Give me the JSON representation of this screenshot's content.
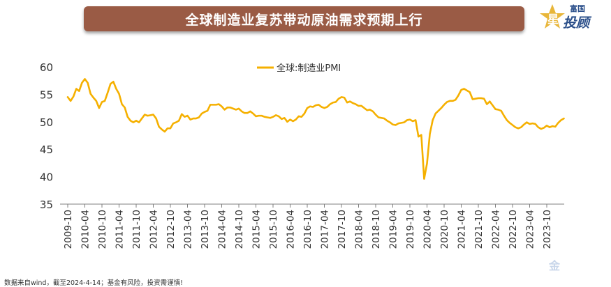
{
  "header": {
    "title": "全球制造业复苏带动原油需求预期上行"
  },
  "logo": {
    "line1": "富国",
    "line2": "投顾",
    "accent_char": "星"
  },
  "footer": {
    "note": "数据来自wind，截至2024-4-14；基金有风险，投资需谨慎!"
  },
  "watermark": {
    "text": "金"
  },
  "colors": {
    "line": "#f5b000",
    "title_bg": "#9a5b45",
    "axis_text": "#333333",
    "logo": "#2b4f8a"
  },
  "chart_data": {
    "type": "line",
    "title": "",
    "xlabel": "",
    "ylabel": "",
    "ylim": [
      35,
      60
    ],
    "yticks": [
      35,
      40,
      45,
      50,
      55,
      60
    ],
    "grid": false,
    "legend_position": "top-center",
    "x_tick_labels": [
      "2009-10",
      "2010-04",
      "2010-10",
      "2011-04",
      "2011-10",
      "2012-04",
      "2012-10",
      "2013-04",
      "2013-10",
      "2014-04",
      "2014-10",
      "2015-04",
      "2015-10",
      "2016-04",
      "2016-10",
      "2017-04",
      "2017-10",
      "2018-04",
      "2018-10",
      "2019-04",
      "2019-10",
      "2020-04",
      "2020-10",
      "2021-04",
      "2021-10",
      "2022-04",
      "2022-10",
      "2023-04",
      "2023-10"
    ],
    "series": [
      {
        "name": "全球:制造业PMI",
        "color": "#f5b000",
        "start": "2009-10",
        "frequency": "monthly",
        "values": [
          54.5,
          53.8,
          54.6,
          56.0,
          55.6,
          57.1,
          57.8,
          57.1,
          55.1,
          54.4,
          53.8,
          52.5,
          53.6,
          53.8,
          55.3,
          56.9,
          57.3,
          56.0,
          55.1,
          53.2,
          52.6,
          50.9,
          50.2,
          49.9,
          50.2,
          49.9,
          50.6,
          51.3,
          51.1,
          51.2,
          51.3,
          50.6,
          49.1,
          48.6,
          48.2,
          48.8,
          48.8,
          49.7,
          49.9,
          50.2,
          51.4,
          50.9,
          51.1,
          50.4,
          50.6,
          50.6,
          50.8,
          51.5,
          51.8,
          52.0,
          53.1,
          53.1,
          53.1,
          53.2,
          52.8,
          52.2,
          52.6,
          52.6,
          52.4,
          52.2,
          52.4,
          51.9,
          51.6,
          51.6,
          51.9,
          51.5,
          51.0,
          51.1,
          51.1,
          50.9,
          50.8,
          50.7,
          50.9,
          51.2,
          51.0,
          50.5,
          50.7,
          50.0,
          50.4,
          50.1,
          50.4,
          51.0,
          50.9,
          51.5,
          52.5,
          52.8,
          52.7,
          53.0,
          53.1,
          52.7,
          52.5,
          52.7,
          53.2,
          53.5,
          53.6,
          54.2,
          54.5,
          54.4,
          53.5,
          53.7,
          53.4,
          53.2,
          52.9,
          52.9,
          52.5,
          52.1,
          52.2,
          51.9,
          51.3,
          50.8,
          50.7,
          50.6,
          50.2,
          49.9,
          49.5,
          49.4,
          49.7,
          49.8,
          49.9,
          50.3,
          50.4,
          50.1,
          50.3,
          47.3,
          47.6,
          39.6,
          42.4,
          47.8,
          50.3,
          51.5,
          52.0,
          52.5,
          53.1,
          53.6,
          53.8,
          53.8,
          54.0,
          54.8,
          55.8,
          56.0,
          55.7,
          55.4,
          54.1,
          54.2,
          54.3,
          54.3,
          54.2,
          53.2,
          53.7,
          53.0,
          52.3,
          52.2,
          52.0,
          51.1,
          50.3,
          49.8,
          49.4,
          49.0,
          48.8,
          49.0,
          49.5,
          49.9,
          49.6,
          49.7,
          49.6,
          49.0,
          48.7,
          48.9,
          49.3,
          49.0,
          49.2,
          49.1,
          49.8,
          50.3,
          50.6
        ]
      }
    ]
  }
}
